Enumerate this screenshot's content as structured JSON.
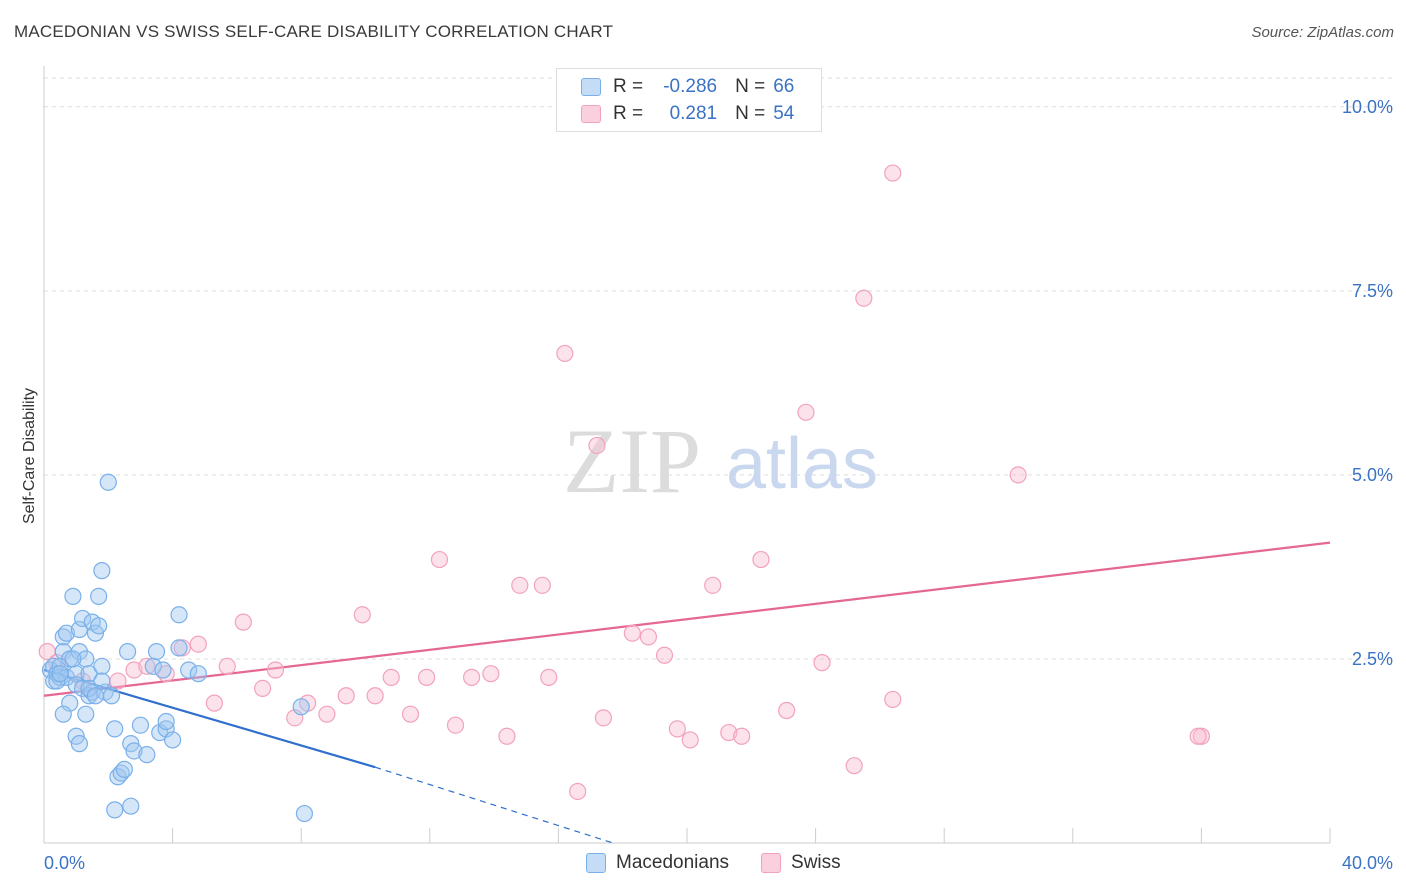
{
  "title": "MACEDONIAN VS SWISS SELF-CARE DISABILITY CORRELATION CHART",
  "source": "Source: ZipAtlas.com",
  "watermark": {
    "zip": "ZIP",
    "atlas": "atlas"
  },
  "legend": {
    "rows": [
      {
        "r_label": "R =",
        "r_value": "-0.286",
        "n_label": "N =",
        "n_value": "66"
      },
      {
        "r_label": "R =",
        "r_value": "0.281",
        "n_label": "N =",
        "n_value": "54"
      }
    ]
  },
  "bottom_legend": {
    "series1": "Macedonians",
    "series2": "Swiss"
  },
  "chart_data": {
    "type": "scatter",
    "title": "MACEDONIAN VS SWISS SELF-CARE DISABILITY CORRELATION CHART",
    "xlabel": "",
    "ylabel": "Self-Care Disability",
    "xlim": [
      0,
      40
    ],
    "ylim": [
      0,
      10.5
    ],
    "x_tick_labels": [
      "0.0%",
      "40.0%"
    ],
    "y_ticks": [
      2.5,
      5.0,
      7.5,
      10.0
    ],
    "y_tick_labels": [
      "2.5%",
      "5.0%",
      "7.5%",
      "10.0%"
    ],
    "grid": true,
    "colors": {
      "macedonians": "#7ab0ea",
      "swiss": "#f2a2bd",
      "mac_line": "#2e6fcd",
      "swiss_line": "#e46794",
      "tick_text": "#3b73c4"
    },
    "series": [
      {
        "name": "Macedonians",
        "trend": {
          "x0": 0,
          "y0": 2.35,
          "x1": 10.3,
          "y1": 1.03,
          "dash_to_x": 17.7,
          "dash_to_y": 0.0
        },
        "points": [
          [
            0.2,
            2.35
          ],
          [
            0.3,
            2.4
          ],
          [
            0.3,
            2.2
          ],
          [
            0.4,
            2.3
          ],
          [
            0.5,
            2.25
          ],
          [
            0.5,
            2.4
          ],
          [
            0.6,
            2.8
          ],
          [
            0.6,
            2.6
          ],
          [
            0.7,
            2.85
          ],
          [
            0.7,
            2.25
          ],
          [
            0.8,
            2.5
          ],
          [
            0.8,
            1.9
          ],
          [
            0.9,
            3.35
          ],
          [
            1.0,
            2.3
          ],
          [
            1.0,
            2.15
          ],
          [
            1.1,
            2.9
          ],
          [
            1.1,
            2.6
          ],
          [
            1.2,
            3.05
          ],
          [
            1.2,
            2.1
          ],
          [
            1.3,
            2.5
          ],
          [
            1.4,
            2.3
          ],
          [
            1.4,
            2.0
          ],
          [
            1.5,
            3.0
          ],
          [
            1.5,
            2.05
          ],
          [
            1.6,
            2.85
          ],
          [
            1.7,
            3.35
          ],
          [
            1.7,
            2.95
          ],
          [
            1.8,
            3.7
          ],
          [
            1.8,
            2.4
          ],
          [
            1.9,
            2.05
          ],
          [
            2.0,
            4.9
          ],
          [
            2.1,
            2.0
          ],
          [
            2.2,
            1.55
          ],
          [
            2.3,
            0.9
          ],
          [
            2.4,
            0.95
          ],
          [
            2.5,
            1.0
          ],
          [
            2.6,
            2.6
          ],
          [
            2.7,
            1.35
          ],
          [
            2.8,
            1.25
          ],
          [
            3.0,
            1.6
          ],
          [
            3.2,
            1.2
          ],
          [
            3.4,
            2.4
          ],
          [
            3.5,
            2.6
          ],
          [
            3.6,
            1.5
          ],
          [
            3.7,
            2.35
          ],
          [
            3.8,
            1.55
          ],
          [
            3.8,
            1.65
          ],
          [
            4.0,
            1.4
          ],
          [
            4.2,
            3.1
          ],
          [
            4.2,
            2.65
          ],
          [
            4.5,
            2.35
          ],
          [
            4.8,
            2.3
          ],
          [
            0.4,
            2.2
          ],
          [
            0.6,
            1.75
          ],
          [
            1.0,
            1.45
          ],
          [
            1.1,
            1.35
          ],
          [
            1.3,
            1.75
          ],
          [
            2.2,
            0.45
          ],
          [
            2.7,
            0.5
          ],
          [
            8.1,
            0.4
          ],
          [
            0.5,
            2.3
          ],
          [
            0.9,
            2.5
          ],
          [
            1.4,
            2.1
          ],
          [
            1.6,
            2.0
          ],
          [
            1.8,
            2.2
          ],
          [
            8.0,
            1.85
          ]
        ]
      },
      {
        "name": "Swiss",
        "trend": {
          "x0": 0,
          "y0": 2.0,
          "x1": 40,
          "y1": 4.08
        },
        "points": [
          [
            0.1,
            2.6
          ],
          [
            0.4,
            2.45
          ],
          [
            1.2,
            2.2
          ],
          [
            2.3,
            2.2
          ],
          [
            2.8,
            2.35
          ],
          [
            3.2,
            2.4
          ],
          [
            3.8,
            2.3
          ],
          [
            4.3,
            2.65
          ],
          [
            4.8,
            2.7
          ],
          [
            5.3,
            1.9
          ],
          [
            5.7,
            2.4
          ],
          [
            6.2,
            3.0
          ],
          [
            6.8,
            2.1
          ],
          [
            7.2,
            2.35
          ],
          [
            7.8,
            1.7
          ],
          [
            8.2,
            1.9
          ],
          [
            8.8,
            1.75
          ],
          [
            9.4,
            2.0
          ],
          [
            9.9,
            3.1
          ],
          [
            10.3,
            2.0
          ],
          [
            10.8,
            2.25
          ],
          [
            11.4,
            1.75
          ],
          [
            11.9,
            2.25
          ],
          [
            12.3,
            3.85
          ],
          [
            12.8,
            1.6
          ],
          [
            13.3,
            2.25
          ],
          [
            13.9,
            2.3
          ],
          [
            14.4,
            1.45
          ],
          [
            14.8,
            3.5
          ],
          [
            15.5,
            3.5
          ],
          [
            15.7,
            2.25
          ],
          [
            16.2,
            6.65
          ],
          [
            16.6,
            0.7
          ],
          [
            17.2,
            5.4
          ],
          [
            17.4,
            1.7
          ],
          [
            18.3,
            2.85
          ],
          [
            18.8,
            2.8
          ],
          [
            19.3,
            2.55
          ],
          [
            19.7,
            1.55
          ],
          [
            20.1,
            1.4
          ],
          [
            20.8,
            3.5
          ],
          [
            21.3,
            1.5
          ],
          [
            21.7,
            1.45
          ],
          [
            22.3,
            3.85
          ],
          [
            23.1,
            1.8
          ],
          [
            23.7,
            5.85
          ],
          [
            24.2,
            2.45
          ],
          [
            25.2,
            1.05
          ],
          [
            25.5,
            7.4
          ],
          [
            26.4,
            1.95
          ],
          [
            26.4,
            9.1
          ],
          [
            30.3,
            5.0
          ],
          [
            36.0,
            1.45
          ],
          [
            35.9,
            1.45
          ]
        ]
      }
    ]
  }
}
